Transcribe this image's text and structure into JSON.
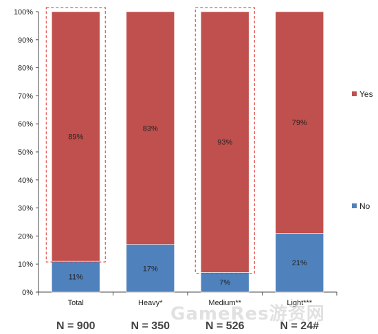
{
  "chart_data": {
    "type": "bar",
    "stacked": true,
    "categories": [
      "Total",
      "Heavy*",
      "Medium**",
      "Light***"
    ],
    "series": [
      {
        "name": "No",
        "values": [
          11,
          17,
          7,
          21
        ],
        "labels": [
          "11%",
          "17%",
          "7%",
          "21%"
        ],
        "color": "#4f81bd"
      },
      {
        "name": "Yes",
        "values": [
          89,
          83,
          93,
          79
        ],
        "labels": [
          "89%",
          "83%",
          "93%",
          "79%"
        ],
        "color": "#c0504d"
      }
    ],
    "ylim": [
      0,
      100
    ],
    "yticks": [
      "0%",
      "10%",
      "20%",
      "30%",
      "40%",
      "50%",
      "60%",
      "70%",
      "80%",
      "90%",
      "100%"
    ],
    "sample_sizes": [
      "N = 900",
      "N = 350",
      "N = 526",
      "N = 24#"
    ],
    "highlighted_categories": [
      "Total",
      "Medium**"
    ],
    "legend_position": "right",
    "grid": false
  },
  "watermark": "GameRes游资网"
}
